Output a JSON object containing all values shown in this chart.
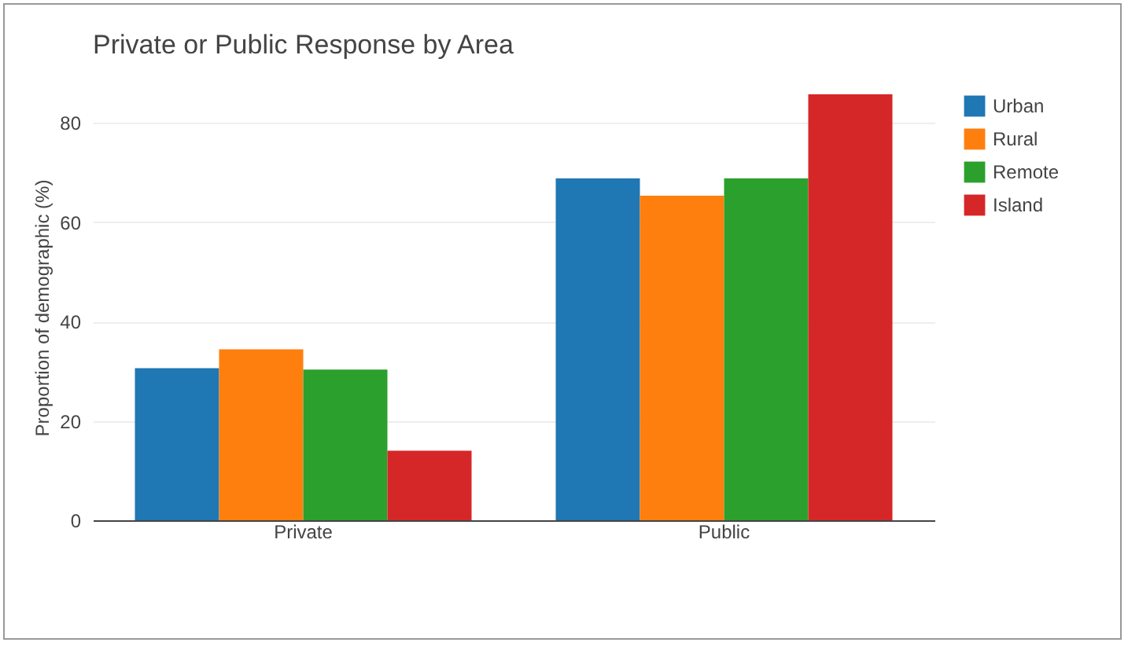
{
  "chart_data": {
    "type": "bar",
    "title": "Private or Public Response by Area",
    "ylabel": "Proportion of demographic (%)",
    "categories": [
      "Private",
      "Public"
    ],
    "series": [
      {
        "name": "Urban",
        "color": "#1f77b4",
        "values": [
          30.6,
          68.8
        ]
      },
      {
        "name": "Rural",
        "color": "#ff7f0e",
        "values": [
          34.4,
          65.3
        ]
      },
      {
        "name": "Remote",
        "color": "#2ca02c",
        "values": [
          30.3,
          68.8
        ]
      },
      {
        "name": "Island",
        "color": "#d62728",
        "values": [
          14.0,
          85.7
        ]
      }
    ],
    "ylim": [
      0,
      85.7
    ],
    "yticks": [
      0,
      20,
      40,
      60,
      80
    ],
    "grid": "y",
    "legend": "top right"
  }
}
